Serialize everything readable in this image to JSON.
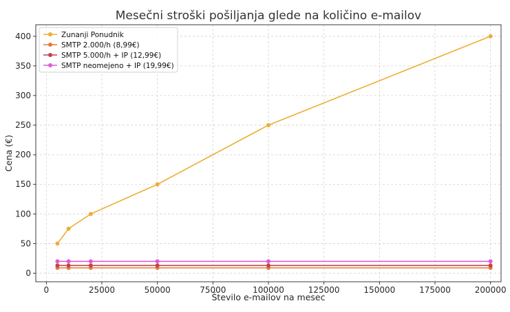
{
  "chart_data": {
    "type": "line",
    "title": "Mesečni stroški pošiljanja glede na količino e-mailov",
    "xlabel": "Število e-mailov na mesec",
    "ylabel": "Cena (€)",
    "xlim": [
      -4750,
      204750
    ],
    "ylim": [
      -14.5,
      419.5
    ],
    "xticks": [
      0,
      25000,
      50000,
      75000,
      100000,
      125000,
      150000,
      175000,
      200000
    ],
    "yticks": [
      0,
      50,
      100,
      150,
      200,
      250,
      300,
      350,
      400
    ],
    "grid": true,
    "legend_position": "top-left",
    "x": [
      5000,
      10000,
      20000,
      50000,
      100000,
      200000
    ],
    "series": [
      {
        "name": "Zunanji Ponudnik",
        "color": "#EBAE34",
        "values": [
          50,
          75,
          100,
          150,
          250,
          400
        ]
      },
      {
        "name": "SMTP 2.000/h (8,99€)",
        "color": "#E07B39",
        "values": [
          8.99,
          8.99,
          8.99,
          8.99,
          8.99,
          8.99
        ]
      },
      {
        "name": "SMTP 5.000/h + IP (12,99€)",
        "color": "#C83E4D",
        "values": [
          12.99,
          12.99,
          12.99,
          12.99,
          12.99,
          12.99
        ]
      },
      {
        "name": "SMTP neomejeno + IP (19,99€)",
        "color": "#D95FD4",
        "values": [
          19.99,
          19.99,
          19.99,
          19.99,
          19.99,
          19.99
        ]
      }
    ]
  }
}
